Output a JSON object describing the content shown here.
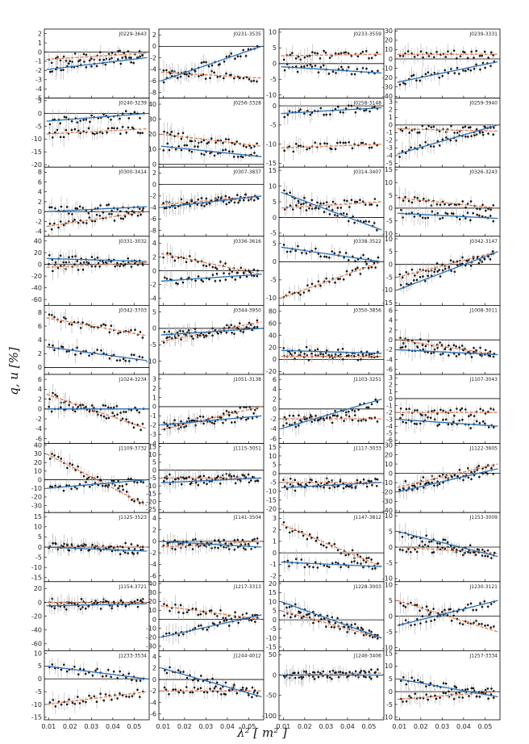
{
  "figure": {
    "ylabel": "q, u [%]",
    "xlabel": "λ² [ m² ]"
  },
  "colors": {
    "q_model": "#e07a4f",
    "u_model": "#2c6fb3",
    "points": "#151515",
    "errorbars": "#b9b9b9",
    "zero_line": "#000000"
  },
  "chart_data": {
    "type": "scatter",
    "layout": "10 rows x 4 columns of panels sharing x-axis",
    "x_range": [
      0.008,
      0.057
    ],
    "x_ticks": [
      "0.01",
      "0.02",
      "0.03",
      "0.04",
      "0.05"
    ],
    "series_per_panel": [
      "q (orange dashed model)",
      "u (blue solid model)"
    ],
    "panels": [
      {
        "name": "J0229-3643",
        "yticks": [
          2,
          1,
          0,
          -1,
          -2,
          -3,
          -4,
          -5
        ],
        "ylim": [
          -5,
          2.5
        ],
        "q": [
          -0.8,
          -0.1
        ],
        "u": [
          -1.9,
          -0.6
        ]
      },
      {
        "name": "J0231-3535",
        "yticks": [
          2,
          0,
          -2,
          -4,
          -6,
          -8
        ],
        "ylim": [
          -9,
          3
        ],
        "q": [
          -4.5,
          -5.5
        ],
        "u": [
          -6,
          0
        ]
      },
      {
        "name": "J0233-3559",
        "yticks": [
          10,
          5,
          0,
          -5,
          -10
        ],
        "ylim": [
          -11,
          11
        ],
        "q": [
          2.5,
          3
        ],
        "u": [
          -1,
          -3
        ]
      },
      {
        "name": "J0239-3331",
        "yticks": [
          30,
          20,
          10,
          0,
          -10,
          -20,
          -30,
          -40
        ],
        "ylim": [
          -42,
          32
        ],
        "q": [
          5,
          5
        ],
        "u": [
          -25,
          -3
        ]
      },
      {
        "name": "J0240-3239",
        "yticks": [
          5,
          0,
          -5,
          -10,
          -15,
          -20
        ],
        "ylim": [
          -21,
          6
        ],
        "q": [
          -8,
          -6
        ],
        "u": [
          -3,
          0
        ]
      },
      {
        "name": "J0256-3328",
        "yticks": [
          40,
          30,
          20,
          10,
          0
        ],
        "ylim": [
          -2,
          44
        ],
        "q": [
          20,
          12
        ],
        "u": [
          12,
          5
        ]
      },
      {
        "name": "J0258-3148",
        "yticks": [
          0,
          -5,
          -10,
          -15
        ],
        "ylim": [
          -16,
          2
        ],
        "q": [
          -11,
          -10
        ],
        "u": [
          -2,
          -0.5
        ]
      },
      {
        "name": "J0259-3940",
        "yticks": [
          3,
          2,
          1,
          0,
          -1,
          -2,
          -3,
          -4,
          -5
        ],
        "ylim": [
          -5.5,
          3.5
        ],
        "q": [
          -0.5,
          -0.8
        ],
        "u": [
          -3.8,
          0
        ]
      },
      {
        "name": "J0300-3414",
        "yticks": [
          8,
          6,
          4,
          2,
          0,
          -2,
          -4
        ],
        "ylim": [
          -5,
          9
        ],
        "q": [
          -3,
          0
        ],
        "u": [
          0,
          1
        ]
      },
      {
        "name": "J0307-3837",
        "yticks": [
          2,
          0,
          -2,
          -4,
          -6,
          -8
        ],
        "ylim": [
          -9,
          3
        ],
        "q": [
          -3.5,
          -2
        ],
        "u": [
          -4,
          -2
        ]
      },
      {
        "name": "J0314-3407",
        "yticks": [
          15,
          10,
          5,
          0,
          -5
        ],
        "ylim": [
          -6,
          16
        ],
        "q": [
          3,
          5
        ],
        "u": [
          8,
          -4
        ]
      },
      {
        "name": "J0326-3243",
        "yticks": [
          15,
          10,
          5,
          0,
          -5,
          -10
        ],
        "ylim": [
          -11,
          16
        ],
        "q": [
          4,
          0
        ],
        "u": [
          -2,
          -4
        ]
      },
      {
        "name": "J0331-3032",
        "yticks": [
          40,
          20,
          0,
          -20,
          -40,
          -60
        ],
        "ylim": [
          -70,
          48
        ],
        "q": [
          -5,
          3
        ],
        "u": [
          10,
          5
        ]
      },
      {
        "name": "J0336-3616",
        "yticks": [
          4,
          2,
          0,
          -2,
          -4
        ],
        "ylim": [
          -5,
          5
        ],
        "q": [
          2.5,
          -0.5
        ],
        "u": [
          -1.5,
          -0.5
        ]
      },
      {
        "name": "J0338-3522",
        "yticks": [
          5,
          0,
          -5,
          -10
        ],
        "ylim": [
          -12,
          7
        ],
        "q": [
          -10,
          0
        ],
        "u": [
          4,
          0
        ]
      },
      {
        "name": "J0342-3147",
        "yticks": [
          10,
          5,
          0,
          -5,
          -10,
          -15
        ],
        "ylim": [
          -16,
          11
        ],
        "q": [
          -5,
          5
        ],
        "u": [
          -10,
          5
        ]
      },
      {
        "name": "J0342-3703",
        "yticks": [
          8,
          6,
          4,
          2,
          0
        ],
        "ylim": [
          -1,
          9
        ],
        "q": [
          7.2,
          4.6
        ],
        "u": [
          3,
          1
        ]
      },
      {
        "name": "J0344-3950",
        "yticks": [
          5,
          0,
          -5,
          -10
        ],
        "ylim": [
          -14,
          7
        ],
        "q": [
          -4,
          2
        ],
        "u": [
          -2,
          0
        ]
      },
      {
        "name": "J0350-3856",
        "yticks": [
          80,
          60,
          40,
          20,
          0,
          -20
        ],
        "ylim": [
          -25,
          90
        ],
        "q": [
          5,
          5
        ],
        "u": [
          15,
          10
        ]
      },
      {
        "name": "J1008-3011",
        "yticks": [
          6,
          4,
          2,
          0,
          -2,
          -4,
          -6
        ],
        "ylim": [
          -7,
          7
        ],
        "q": [
          0,
          -3
        ],
        "u": [
          -2,
          -3
        ]
      },
      {
        "name": "J1024-3234",
        "yticks": [
          6,
          4,
          2,
          0,
          -2,
          -4,
          -6
        ],
        "ylim": [
          -7,
          7
        ],
        "q": [
          3,
          -4
        ],
        "u": [
          0,
          0
        ]
      },
      {
        "name": "J1051-3138",
        "yticks": [
          3,
          2,
          1,
          0,
          -1,
          -2,
          -3,
          -4
        ],
        "ylim": [
          -4,
          3.5
        ],
        "q": [
          -2.5,
          0
        ],
        "u": [
          -2,
          -1
        ]
      },
      {
        "name": "J1103-3251",
        "yticks": [
          6,
          4,
          2,
          0,
          -2,
          -4,
          -6
        ],
        "ylim": [
          -7,
          7
        ],
        "q": [
          -2,
          -2
        ],
        "u": [
          -4,
          2
        ]
      },
      {
        "name": "J1107-3043",
        "yticks": [
          3,
          2,
          1,
          0,
          -1,
          -2,
          -3,
          -4,
          -5,
          -6
        ],
        "ylim": [
          -6.5,
          3.5
        ],
        "q": [
          -2,
          -2
        ],
        "u": [
          -3,
          -4
        ]
      },
      {
        "name": "J1109-3732",
        "yticks": [
          40,
          30,
          20,
          10,
          0,
          -10,
          -20,
          -30
        ],
        "ylim": [
          -38,
          42
        ],
        "q": [
          30,
          -30
        ],
        "u": [
          -10,
          0
        ]
      },
      {
        "name": "J1115-3051",
        "yticks": [
          15,
          10,
          5,
          0,
          -5,
          -10,
          -15,
          -20,
          -25
        ],
        "ylim": [
          -27,
          17
        ],
        "q": [
          -5,
          -5
        ],
        "u": [
          -8,
          -5
        ]
      },
      {
        "name": "J1117-3033",
        "yticks": [
          15,
          10,
          5,
          0,
          -5,
          -10,
          -15,
          -20
        ],
        "ylim": [
          -22,
          17
        ],
        "q": [
          -5,
          -5
        ],
        "u": [
          -8,
          -5
        ]
      },
      {
        "name": "J1122-3605",
        "yticks": [
          30,
          20,
          10,
          0,
          -10,
          -20,
          -30,
          -40
        ],
        "ylim": [
          -42,
          32
        ],
        "q": [
          -15,
          10
        ],
        "u": [
          -20,
          5
        ]
      },
      {
        "name": "J1125-3523",
        "yticks": [
          15,
          10,
          5,
          0,
          -5,
          -10,
          -15
        ],
        "ylim": [
          -17,
          17
        ],
        "q": [
          0,
          0
        ],
        "u": [
          0,
          -2
        ]
      },
      {
        "name": "J1141-3504",
        "yticks": [
          4,
          2,
          0,
          -2,
          -4,
          -6
        ],
        "ylim": [
          -7,
          5
        ],
        "q": [
          -1,
          0
        ],
        "u": [
          0,
          -1
        ]
      },
      {
        "name": "J1147-3812",
        "yticks": [
          3,
          2,
          1,
          0,
          -1,
          -2
        ],
        "ylim": [
          -2.5,
          3.5
        ],
        "q": [
          2.5,
          -1.2
        ],
        "u": [
          -0.8,
          -1.2
        ]
      },
      {
        "name": "J1153-3009",
        "yticks": [
          10,
          5,
          0,
          -5,
          -10
        ],
        "ylim": [
          -11,
          11
        ],
        "q": [
          0,
          -2
        ],
        "u": [
          5,
          -3
        ]
      },
      {
        "name": "J1154-3721",
        "yticks": [
          20,
          0,
          -20,
          -40,
          -60
        ],
        "ylim": [
          -70,
          30
        ],
        "q": [
          0,
          0
        ],
        "u": [
          -5,
          -2
        ]
      },
      {
        "name": "J1217-3313",
        "yticks": [
          40,
          30,
          20,
          10,
          0,
          -10,
          -20,
          -30
        ],
        "ylim": [
          -35,
          42
        ],
        "q": [
          15,
          0
        ],
        "u": [
          -20,
          5
        ]
      },
      {
        "name": "J1228-3003",
        "yticks": [
          20,
          15,
          10,
          5,
          0,
          -5,
          -10,
          -15
        ],
        "ylim": [
          -17,
          21
        ],
        "q": [
          5,
          -10
        ],
        "u": [
          10,
          -10
        ]
      },
      {
        "name": "J1230-3121",
        "yticks": [
          10,
          5,
          0,
          -5,
          -10
        ],
        "ylim": [
          -11,
          11
        ],
        "q": [
          5,
          -5
        ],
        "u": [
          -3,
          5
        ]
      },
      {
        "name": "J1233-3534",
        "yticks": [
          10,
          5,
          0,
          -5,
          -10,
          -15
        ],
        "ylim": [
          -16,
          11
        ],
        "q": [
          -10,
          -5
        ],
        "u": [
          5,
          0
        ]
      },
      {
        "name": "J1244-4012",
        "yticks": [
          4,
          2,
          0,
          -2,
          -4,
          -6
        ],
        "ylim": [
          -7,
          5
        ],
        "q": [
          -2,
          -2
        ],
        "u": [
          2,
          -3
        ]
      },
      {
        "name": "J1246-3406",
        "yticks": [
          50,
          0,
          -50,
          -100
        ],
        "ylim": [
          -110,
          60
        ],
        "q": [
          0,
          5
        ],
        "u": [
          0,
          0
        ]
      },
      {
        "name": "J1257-3334",
        "yticks": [
          15,
          10,
          5,
          0,
          -5,
          -10
        ],
        "ylim": [
          -11,
          16
        ],
        "q": [
          -3,
          0
        ],
        "u": [
          5,
          -2
        ]
      }
    ]
  }
}
